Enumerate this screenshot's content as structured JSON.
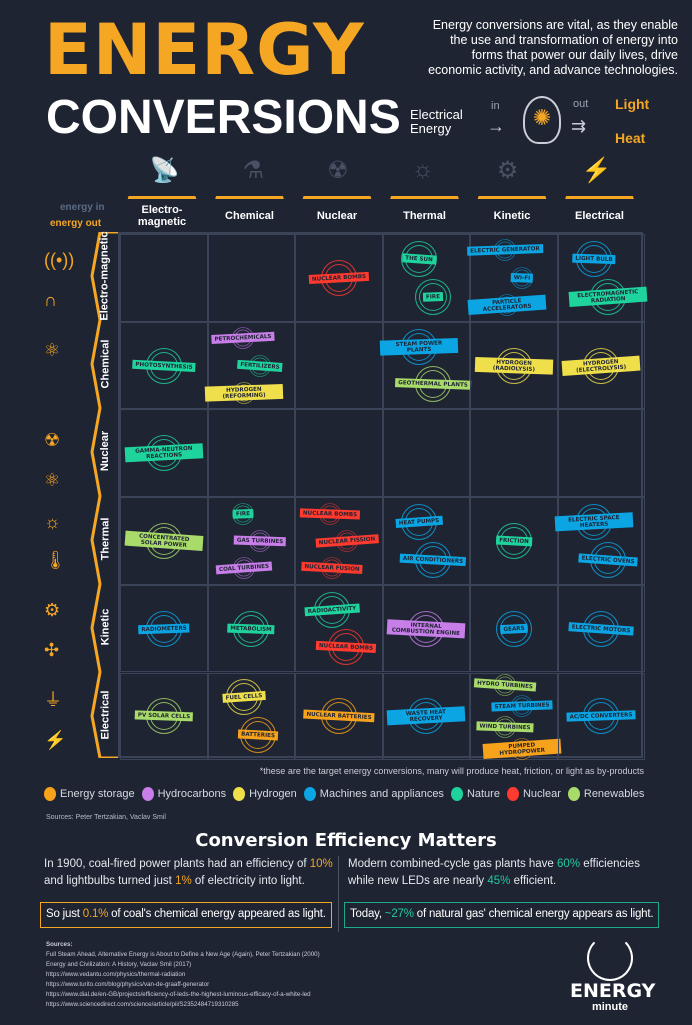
{
  "header": {
    "title_line1": "ENERGY",
    "title_line2": "CONVERSIONS",
    "description": "Energy conversions are vital, as they enable the use and transformation of energy into forms that power our daily lives, drive economic activity, and advance technologies.",
    "flow": {
      "input": "Electrical Energy",
      "in_label": "in",
      "out_label": "out",
      "output1": "Light",
      "output2": "Heat",
      "icon": "lightbulb-icon"
    }
  },
  "axis": {
    "energy_in": "energy in",
    "energy_out": "energy out"
  },
  "columns": [
    "Electro-magnetic",
    "Chemical",
    "Nuclear",
    "Thermal",
    "Kinetic",
    "Electrical"
  ],
  "rows": [
    "Electro-magnetic",
    "Chemical",
    "Nuclear",
    "Thermal",
    "Kinetic",
    "Electrical"
  ],
  "categories": {
    "storage": {
      "label": "Energy storage",
      "color": "#f7a21b"
    },
    "hydrocarbons": {
      "label": "Hydrocarbons",
      "color": "#c77ee8"
    },
    "hydrogen": {
      "label": "Hydrogen",
      "color": "#efe04b"
    },
    "machines": {
      "label": "Machines and appliances",
      "color": "#0ba5e4"
    },
    "nature": {
      "label": "Nature",
      "color": "#1fd39d"
    },
    "nuclear": {
      "label": "Nuclear",
      "color": "#ff3a2e"
    },
    "renewables": {
      "label": "Renewables",
      "color": "#a9db6a"
    }
  },
  "legend_order": [
    "storage",
    "hydrocarbons",
    "hydrogen",
    "machines",
    "nature",
    "nuclear",
    "renewables"
  ],
  "cells": [
    [
      [],
      [],
      [
        {
          "label": "Nuclear bombs",
          "cat": "nuclear"
        }
      ],
      [
        {
          "label": "The sun",
          "cat": "nature"
        },
        {
          "label": "Fire",
          "cat": "nature"
        }
      ],
      [
        {
          "label": "Electric generator",
          "cat": "machines"
        },
        {
          "label": "Wi-Fi",
          "cat": "machines"
        },
        {
          "label": "Particle accelerators",
          "cat": "machines"
        }
      ],
      [
        {
          "label": "Light bulb",
          "cat": "machines"
        },
        {
          "label": "Electromagnetic radiation",
          "cat": "nature"
        }
      ]
    ],
    [
      [
        {
          "label": "Photosynthesis",
          "cat": "nature"
        }
      ],
      [
        {
          "label": "Petrochemicals",
          "cat": "hydrocarbons"
        },
        {
          "label": "Fertilizers",
          "cat": "nature"
        },
        {
          "label": "Hydrogen (reforming)",
          "cat": "hydrogen"
        }
      ],
      [],
      [
        {
          "label": "Steam power plants",
          "cat": "machines"
        },
        {
          "label": "Geothermal plants",
          "cat": "renewables"
        }
      ],
      [
        {
          "label": "Hydrogen (radiolysis)",
          "cat": "hydrogen"
        }
      ],
      [
        {
          "label": "Hydrogen (electrolysis)",
          "cat": "hydrogen"
        }
      ]
    ],
    [
      [
        {
          "label": "Gamma-neutron reactions",
          "cat": "nature"
        }
      ],
      [],
      [],
      [],
      [],
      []
    ],
    [
      [
        {
          "label": "Concentrated solar power",
          "cat": "renewables"
        }
      ],
      [
        {
          "label": "Fire",
          "cat": "nature"
        },
        {
          "label": "Gas turbines",
          "cat": "hydrocarbons"
        },
        {
          "label": "Coal turbines",
          "cat": "hydrocarbons"
        }
      ],
      [
        {
          "label": "Nuclear bombs",
          "cat": "nuclear"
        },
        {
          "label": "Nuclear fission",
          "cat": "nuclear"
        },
        {
          "label": "Nuclear fusion",
          "cat": "nuclear"
        }
      ],
      [
        {
          "label": "Heat pumps",
          "cat": "machines"
        },
        {
          "label": "Air conditioners",
          "cat": "machines"
        }
      ],
      [
        {
          "label": "Friction",
          "cat": "nature"
        }
      ],
      [
        {
          "label": "Electric space heaters",
          "cat": "machines"
        },
        {
          "label": "Electric ovens",
          "cat": "machines"
        }
      ]
    ],
    [
      [
        {
          "label": "Radiometers",
          "cat": "machines"
        }
      ],
      [
        {
          "label": "Metabolism",
          "cat": "nature"
        }
      ],
      [
        {
          "label": "Radioactivity",
          "cat": "nature"
        },
        {
          "label": "Nuclear bombs",
          "cat": "nuclear"
        }
      ],
      [
        {
          "label": "Internal combustion engine",
          "cat": "hydrocarbons"
        }
      ],
      [
        {
          "label": "Gears",
          "cat": "machines"
        }
      ],
      [
        {
          "label": "Electric motors",
          "cat": "machines"
        }
      ]
    ],
    [
      [
        {
          "label": "PV solar cells",
          "cat": "renewables"
        }
      ],
      [
        {
          "label": "Fuel cells",
          "cat": "hydrogen"
        },
        {
          "label": "Batteries",
          "cat": "storage"
        }
      ],
      [
        {
          "label": "Nuclear batteries",
          "cat": "storage"
        }
      ],
      [
        {
          "label": "Waste heat recovery",
          "cat": "machines"
        }
      ],
      [
        {
          "label": "Hydro turbines",
          "cat": "renewables"
        },
        {
          "label": "Steam turbines",
          "cat": "machines"
        },
        {
          "label": "Wind turbines",
          "cat": "renewables"
        },
        {
          "label": "Pumped hydropower",
          "cat": "storage"
        }
      ],
      [
        {
          "label": "AC/DC converters",
          "cat": "machines"
        }
      ]
    ]
  ],
  "footnote": "*these are the target energy conversions, many will produce heat, friction, or light as by-products",
  "sources_short": "Sources: Peter Tertzakian, Vaclav Smil",
  "efficiency": {
    "title": "Conversion Efficiency Matters",
    "left": {
      "t1": "In 1900, coal-fired power plants had an efficiency of ",
      "v1": "10%",
      "t2": " and lightbulbs turned just ",
      "v2": "1%",
      "t3": " of electricity into light.",
      "box_t1": "So just ",
      "box_v": "0.1%",
      "box_t2": " of coal's chemical energy appeared as light."
    },
    "right": {
      "t1": "Modern combined-cycle gas plants have ",
      "v1": "60%",
      "t2": " efficiencies while new LEDs are nearly ",
      "v2": "45%",
      "t3": " efficient.",
      "box_t1": "Today, ",
      "box_v": "~27%",
      "box_t2": " of natural gas' chemical energy appears as light."
    }
  },
  "sources": {
    "title": "Sources:",
    "items": [
      "Full Steam Ahead, Alternative Energy is About to Define a New Age (Again), Peter Tertzakian (2000)",
      "Energy and Civilization: A History, Vaclav Smil (2017)",
      "https://www.vedantu.com/physics/thermal-radiation",
      "https://www.turito.com/blog/physics/van-de-graaff-generator",
      "https://www.dial.de/en-GB/projects/efficiency-of-leds-the-highest-luminous-efficacy-of-a-white-led",
      "https://www.sciencedirect.com/science/article/pii/S2352484719310285"
    ]
  },
  "logo": {
    "line1": "ENERGY",
    "line2": "minute"
  }
}
